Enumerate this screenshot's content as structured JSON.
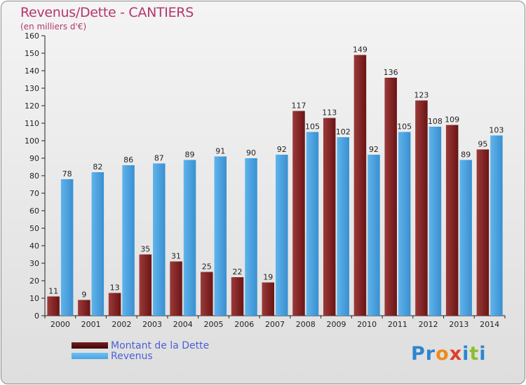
{
  "header": {
    "title": "Revenus/Dette - CANTIERS",
    "subtitle": "(en milliers d'€)"
  },
  "legend": {
    "items": [
      {
        "label": "Montant de la Dette",
        "color": "#7a1c1c"
      },
      {
        "label": "Revenus",
        "color": "#4aa3e3"
      }
    ]
  },
  "brand": {
    "name": "Proxiti"
  },
  "chart_data": {
    "type": "bar",
    "categories": [
      "2000",
      "2001",
      "2002",
      "2003",
      "2004",
      "2005",
      "2006",
      "2007",
      "2008",
      "2009",
      "2010",
      "2011",
      "2012",
      "2013",
      "2014"
    ],
    "series": [
      {
        "name": "Montant de la Dette",
        "color": "#8b2a2a",
        "values": [
          11,
          9,
          13,
          35,
          31,
          25,
          22,
          19,
          117,
          113,
          149,
          136,
          123,
          109,
          95
        ]
      },
      {
        "name": "Revenus",
        "color": "#4aa3e3",
        "values": [
          78,
          82,
          86,
          87,
          89,
          91,
          90,
          92,
          105,
          102,
          92,
          105,
          108,
          89,
          103
        ]
      }
    ],
    "title": "Revenus/Dette - CANTIERS",
    "ylabel": "(en milliers d'€)",
    "ylim": [
      0,
      160
    ],
    "yticks": [
      0,
      10,
      20,
      30,
      40,
      50,
      60,
      70,
      80,
      90,
      100,
      110,
      120,
      130,
      140,
      150,
      160
    ],
    "grid": false,
    "legend_position": "bottom-left"
  }
}
